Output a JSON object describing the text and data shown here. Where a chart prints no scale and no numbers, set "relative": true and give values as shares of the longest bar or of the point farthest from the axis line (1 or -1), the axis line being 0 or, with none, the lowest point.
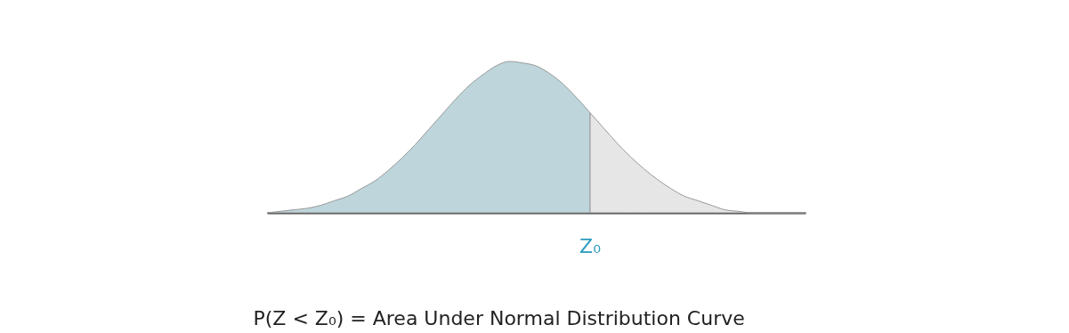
{
  "chart_data": {
    "type": "area",
    "relative": true,
    "categories": [
      null,
      null,
      null,
      null,
      null,
      null,
      null,
      null,
      null,
      null,
      null,
      null,
      null,
      null,
      null,
      null,
      null,
      null,
      null,
      null,
      null,
      null,
      null,
      null,
      null,
      null,
      null,
      null,
      null,
      null,
      null,
      null,
      null,
      null,
      null,
      null,
      null,
      null,
      null,
      null,
      null
    ],
    "series": [
      {
        "color": "#bdd5db",
        "values": [
          0,
          0.01,
          0.02,
          0.03,
          0.05,
          0.08,
          0.11,
          0.16,
          0.21,
          0.28,
          0.36,
          0.45,
          0.55,
          0.65,
          0.75,
          0.84,
          0.91,
          0.97,
          1,
          0.99,
          0.97,
          0.92,
          0.85,
          0.76,
          0.66,
          null,
          null,
          null,
          null,
          null,
          null,
          null,
          null,
          null,
          null,
          null,
          null,
          null,
          null,
          null,
          null
        ]
      },
      {
        "color": "#e6e6e6",
        "values": [
          null,
          null,
          null,
          null,
          null,
          null,
          null,
          null,
          null,
          null,
          null,
          null,
          null,
          null,
          null,
          null,
          null,
          null,
          null,
          null,
          null,
          null,
          null,
          null,
          0.66,
          0.56,
          0.46,
          0.37,
          0.29,
          0.22,
          0.16,
          0.11,
          0.08,
          0.05,
          0.02,
          0.01,
          0,
          0,
          0,
          0,
          0
        ]
      }
    ],
    "annotations": [
      "Z₀",
      "P(Z < Z₀) = Area Under Normal Distribution Curve"
    ],
    "grid": false
  }
}
